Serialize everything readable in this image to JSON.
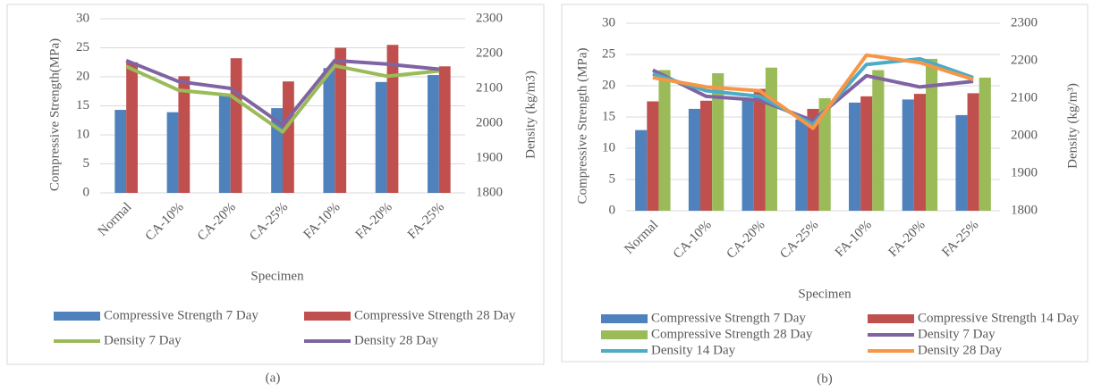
{
  "chart_data": [
    {
      "type": "combo",
      "caption": "(a)",
      "x_label": "Specimen",
      "y_label": "Compressive Strength(MPa)",
      "y2_label": "Density (kg/m3)",
      "categories": [
        "Normal",
        "CA-10%",
        "CA-20%",
        "CA-25%",
        "FA-10%",
        "FA-20%",
        "FA-25%"
      ],
      "ylim": [
        0,
        30
      ],
      "yticks": [
        0,
        5,
        10,
        15,
        20,
        25,
        30
      ],
      "y2lim": [
        1800,
        2300
      ],
      "y2ticks": [
        1800,
        1900,
        2000,
        2100,
        2200,
        2300
      ],
      "grid": true,
      "series": [
        {
          "name": "Compressive Strength 7 Day",
          "type": "bar",
          "color": "#4f81bd",
          "values": [
            14.3,
            13.9,
            16.7,
            14.6,
            21.5,
            19.1,
            20.3
          ]
        },
        {
          "name": "Compressive Strength 28 Day",
          "type": "bar",
          "color": "#c0504d",
          "values": [
            22.5,
            20.1,
            23.2,
            19.2,
            25.0,
            25.5,
            21.8
          ]
        },
        {
          "name": "Density 7 Day",
          "type": "line",
          "axis": "y2",
          "color": "#9bbb59",
          "values": [
            2163,
            2095,
            2080,
            1975,
            2165,
            2135,
            2150
          ]
        },
        {
          "name": "Density 28 Day",
          "type": "line",
          "axis": "y2",
          "color": "#8064a2",
          "values": [
            2180,
            2120,
            2100,
            1995,
            2180,
            2170,
            2155
          ]
        }
      ]
    },
    {
      "type": "combo",
      "caption": "(b)",
      "x_label": "Specimen",
      "y_label": "Compressive Strength (MPa)",
      "y2_label": "Density (kg/m³)",
      "categories": [
        "Normal",
        "CA-10%",
        "CA-20%",
        "CA-25%",
        "FA-10%",
        "FA-20%",
        "FA-25%"
      ],
      "ylim": [
        0,
        30
      ],
      "yticks": [
        0,
        5,
        10,
        15,
        20,
        25,
        30
      ],
      "y2lim": [
        1800,
        2300
      ],
      "y2ticks": [
        1800,
        1900,
        2000,
        2100,
        2200,
        2300
      ],
      "grid": true,
      "series": [
        {
          "name": "Compressive Strength 7 Day",
          "type": "bar",
          "color": "#4f81bd",
          "values": [
            12.9,
            16.3,
            18.0,
            14.6,
            17.3,
            17.8,
            15.3
          ]
        },
        {
          "name": "Compressive Strength 14 Day",
          "type": "bar",
          "color": "#c0504d",
          "values": [
            17.5,
            17.6,
            19.5,
            16.3,
            18.3,
            18.7,
            18.8
          ]
        },
        {
          "name": "Compressive Strength 28 Day",
          "type": "bar",
          "color": "#9bbb59",
          "values": [
            22.5,
            22.0,
            22.9,
            18.0,
            22.5,
            24.3,
            21.3
          ]
        },
        {
          "name": "Density 7 Day",
          "type": "line",
          "axis": "y2",
          "color": "#8064a2",
          "values": [
            2175,
            2105,
            2095,
            2040,
            2160,
            2130,
            2145
          ]
        },
        {
          "name": "Density 14 Day",
          "type": "line",
          "axis": "y2",
          "color": "#4bacc6",
          "values": [
            2165,
            2120,
            2105,
            2030,
            2190,
            2205,
            2155
          ]
        },
        {
          "name": "Density 28 Day",
          "type": "line",
          "axis": "y2",
          "color": "#f79646",
          "values": [
            2155,
            2130,
            2120,
            2020,
            2215,
            2195,
            2150
          ]
        }
      ]
    }
  ]
}
